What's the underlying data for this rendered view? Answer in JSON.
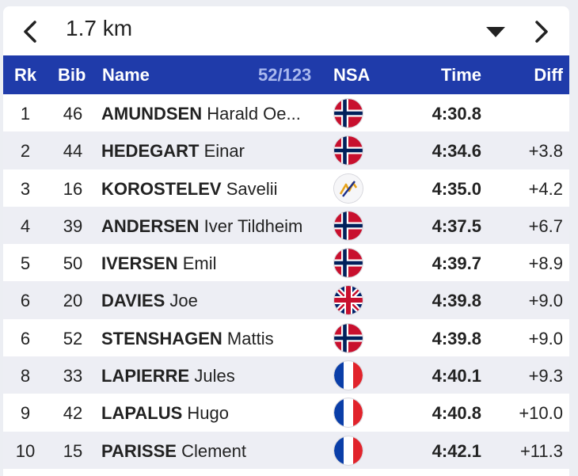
{
  "header": {
    "title": "1.7 km"
  },
  "columns": {
    "rank": "Rk",
    "bib": "Bib",
    "name": "Name",
    "count": "52/123",
    "nsa": "NSA",
    "time": "Time",
    "diff": "Diff"
  },
  "rows": [
    {
      "rank": "1",
      "bib": "46",
      "last": "AMUNDSEN",
      "first": "Harald Oe...",
      "nsa": "NOR",
      "time": "4:30.8",
      "diff": ""
    },
    {
      "rank": "2",
      "bib": "44",
      "last": "HEDEGART",
      "first": "Einar",
      "nsa": "NOR",
      "time": "4:34.6",
      "diff": "+3.8"
    },
    {
      "rank": "3",
      "bib": "16",
      "last": "KOROSTELEV",
      "first": "Savelii",
      "nsa": "FIS",
      "time": "4:35.0",
      "diff": "+4.2"
    },
    {
      "rank": "4",
      "bib": "39",
      "last": "ANDERSEN",
      "first": "Iver Tildheim",
      "nsa": "NOR",
      "time": "4:37.5",
      "diff": "+6.7"
    },
    {
      "rank": "5",
      "bib": "50",
      "last": "IVERSEN",
      "first": "Emil",
      "nsa": "NOR",
      "time": "4:39.7",
      "diff": "+8.9"
    },
    {
      "rank": "6",
      "bib": "20",
      "last": "DAVIES",
      "first": "Joe",
      "nsa": "GBR",
      "time": "4:39.8",
      "diff": "+9.0"
    },
    {
      "rank": "6",
      "bib": "52",
      "last": "STENSHAGEN",
      "first": "Mattis",
      "nsa": "NOR",
      "time": "4:39.8",
      "diff": "+9.0"
    },
    {
      "rank": "8",
      "bib": "33",
      "last": "LAPIERRE",
      "first": "Jules",
      "nsa": "FRA",
      "time": "4:40.1",
      "diff": "+9.3"
    },
    {
      "rank": "9",
      "bib": "42",
      "last": "LAPALUS",
      "first": "Hugo",
      "nsa": "FRA",
      "time": "4:40.8",
      "diff": "+10.0"
    },
    {
      "rank": "10",
      "bib": "15",
      "last": "PARISSE",
      "first": "Clement",
      "nsa": "FRA",
      "time": "4:42.1",
      "diff": "+11.3"
    }
  ],
  "colors": {
    "header_bg": "#1f3baa",
    "row_alt": "#edeef4",
    "count_text": "#a9b8ee"
  },
  "icons": {
    "prev": "chevron-left-icon",
    "dropdown": "caret-down-icon",
    "next": "chevron-right-icon"
  }
}
